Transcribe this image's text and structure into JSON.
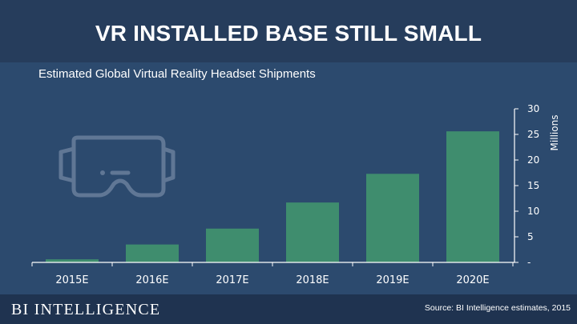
{
  "header": {
    "title": "VR INSTALLED BASE STILL SMALL"
  },
  "subtitle": "Estimated Global Virtual Reality Headset Shipments",
  "footer": {
    "brand": "BI INTELLIGENCE",
    "source": "Source: BI Intelligence estimates, 2015"
  },
  "colors": {
    "bar": "#3f8d6e",
    "background": "#2c4a6e",
    "title_band": "#263d5c",
    "axis": "#ffffff"
  },
  "chart_data": {
    "type": "bar",
    "title": "Estimated Global Virtual Reality Headset Shipments",
    "categories": [
      "2015E",
      "2016E",
      "2017E",
      "2018E",
      "2019E",
      "2020E"
    ],
    "values": [
      0.6,
      3.5,
      6.6,
      11.7,
      17.3,
      25.6
    ],
    "ylim": [
      0,
      30
    ],
    "yticks": [
      0,
      5,
      10,
      15,
      20,
      25,
      30
    ],
    "ytick_labels": [
      "-",
      "5",
      "10",
      "15",
      "20",
      "25",
      "30"
    ],
    "ylabel": "Millions",
    "xlabel": "",
    "y_axis_side": "right",
    "grid": false
  }
}
